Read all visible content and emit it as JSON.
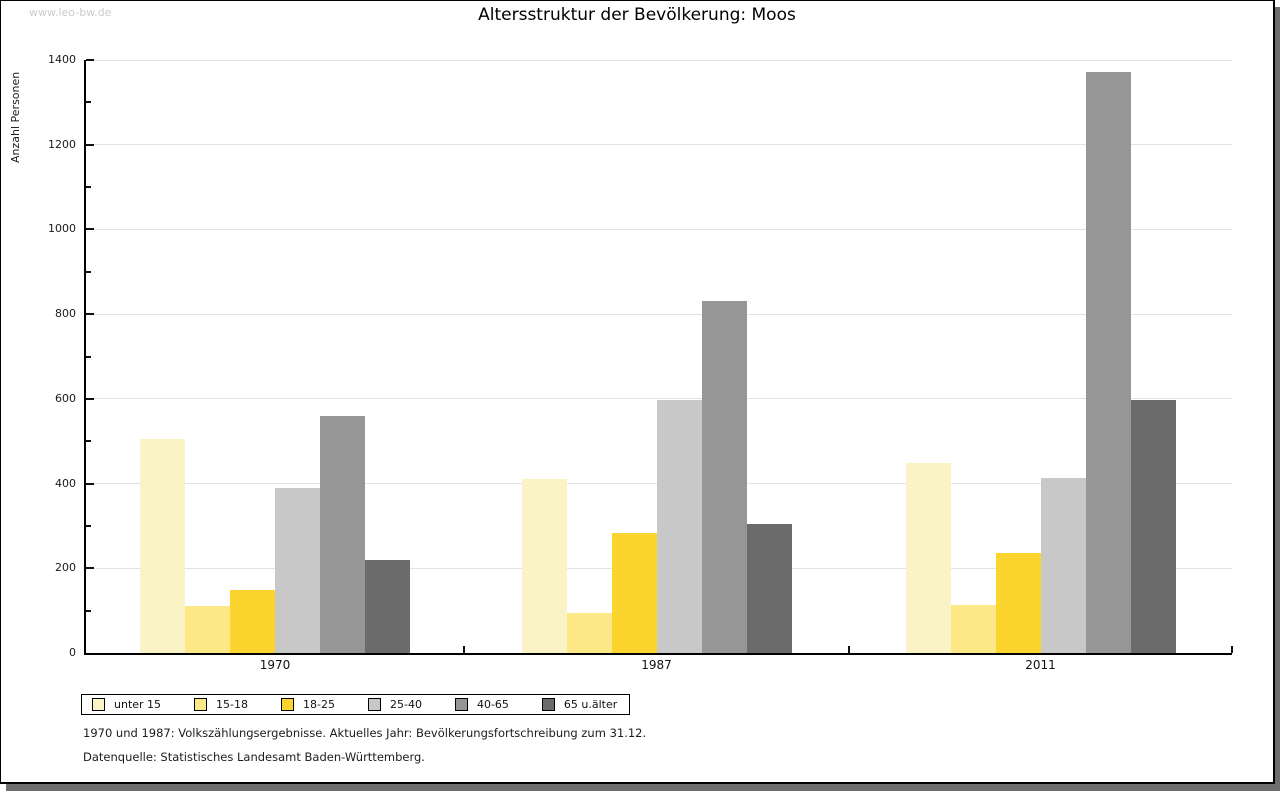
{
  "watermark": "www.leo-bw.de",
  "title": "Altersstruktur der Bevölkerung: Moos",
  "footnotes": {
    "line1": "1970 und 1987: Volkszählungsergebnisse. Aktuelles Jahr: Bevölkerungsfortschreibung zum 31.12.",
    "line2": "Datenquelle: Statistisches Landesamt Baden-Württemberg."
  },
  "chart_data": {
    "type": "bar",
    "title": "Altersstruktur der Bevölkerung: Moos",
    "categories": [
      "1970",
      "1987",
      "2011"
    ],
    "series": [
      {
        "name": "unter 15",
        "color": "#faf3c6",
        "values": [
          505,
          410,
          448
        ]
      },
      {
        "name": "15-18",
        "color": "#fce886",
        "values": [
          111,
          95,
          113
        ]
      },
      {
        "name": "18-25",
        "color": "#fcd42e",
        "values": [
          148,
          283,
          236
        ]
      },
      {
        "name": "25-40",
        "color": "#c8c8c8",
        "values": [
          390,
          597,
          412
        ]
      },
      {
        "name": "40-65",
        "color": "#969696",
        "values": [
          560,
          831,
          1372
        ]
      },
      {
        "name": "65 u.älter",
        "color": "#6b6b6b",
        "values": [
          220,
          305,
          597
        ]
      }
    ],
    "xlabel": "",
    "ylabel": "Anzahl Personen",
    "ylim": [
      0,
      1400
    ],
    "ytick_step": 200,
    "yminor_step": 100,
    "grid": true,
    "legend_position": "bottom"
  }
}
